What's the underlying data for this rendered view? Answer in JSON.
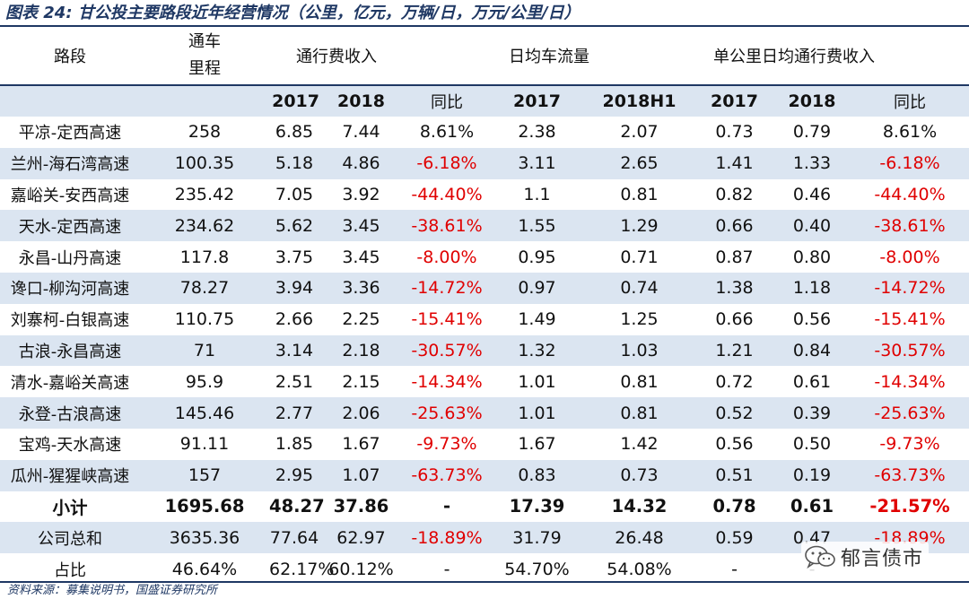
{
  "caption": "图表 24: 甘公投主要路段近年经营情况（公里，亿元，万辆/日，万元/公里/日）",
  "header": {
    "road": "路段",
    "mileage_line1": "通车",
    "mileage_line2": "里程",
    "toll": "通行费收入",
    "traffic": "日均车流量",
    "per_km": "单公里日均通行费收入",
    "y2017": "2017",
    "y2018": "2018",
    "yoy": "同比",
    "y2018h1": "2018H1"
  },
  "rows": [
    {
      "name": "平凉-定西高速",
      "mileage": "258",
      "t2017": "6.85",
      "t2018": "7.44",
      "tyoy": "8.61%",
      "f2017": "2.38",
      "f2018h1": "2.07",
      "k2017": "0.73",
      "k2018": "0.79",
      "kyoy": "8.61%"
    },
    {
      "name": "兰州-海石湾高速",
      "mileage": "100.35",
      "t2017": "5.18",
      "t2018": "4.86",
      "tyoy": "-6.18%",
      "f2017": "3.11",
      "f2018h1": "2.65",
      "k2017": "1.41",
      "k2018": "1.33",
      "kyoy": "-6.18%"
    },
    {
      "name": "嘉峪关-安西高速",
      "mileage": "235.42",
      "t2017": "7.05",
      "t2018": "3.92",
      "tyoy": "-44.40%",
      "f2017": "1.1",
      "f2018h1": "0.81",
      "k2017": "0.82",
      "k2018": "0.46",
      "kyoy": "-44.40%"
    },
    {
      "name": "天水-定西高速",
      "mileage": "234.62",
      "t2017": "5.62",
      "t2018": "3.45",
      "tyoy": "-38.61%",
      "f2017": "1.55",
      "f2018h1": "1.29",
      "k2017": "0.66",
      "k2018": "0.40",
      "kyoy": "-38.61%"
    },
    {
      "name": "永昌-山丹高速",
      "mileage": "117.8",
      "t2017": "3.75",
      "t2018": "3.45",
      "tyoy": "-8.00%",
      "f2017": "0.95",
      "f2018h1": "0.71",
      "k2017": "0.87",
      "k2018": "0.80",
      "kyoy": "-8.00%"
    },
    {
      "name": "谗口-柳沟河高速",
      "mileage": "78.27",
      "t2017": "3.94",
      "t2018": "3.36",
      "tyoy": "-14.72%",
      "f2017": "0.97",
      "f2018h1": "0.74",
      "k2017": "1.38",
      "k2018": "1.18",
      "kyoy": "-14.72%"
    },
    {
      "name": "刘寨柯-白银高速",
      "mileage": "110.75",
      "t2017": "2.66",
      "t2018": "2.25",
      "tyoy": "-15.41%",
      "f2017": "1.49",
      "f2018h1": "1.25",
      "k2017": "0.66",
      "k2018": "0.56",
      "kyoy": "-15.41%"
    },
    {
      "name": "古浪-永昌高速",
      "mileage": "71",
      "t2017": "3.14",
      "t2018": "2.18",
      "tyoy": "-30.57%",
      "f2017": "1.32",
      "f2018h1": "1.03",
      "k2017": "1.21",
      "k2018": "0.84",
      "kyoy": "-30.57%"
    },
    {
      "name": "清水-嘉峪关高速",
      "mileage": "95.9",
      "t2017": "2.51",
      "t2018": "2.15",
      "tyoy": "-14.34%",
      "f2017": "1.01",
      "f2018h1": "0.81",
      "k2017": "0.72",
      "k2018": "0.61",
      "kyoy": "-14.34%"
    },
    {
      "name": "永登-古浪高速",
      "mileage": "145.46",
      "t2017": "2.77",
      "t2018": "2.06",
      "tyoy": "-25.63%",
      "f2017": "1.01",
      "f2018h1": "0.81",
      "k2017": "0.52",
      "k2018": "0.39",
      "kyoy": "-25.63%"
    },
    {
      "name": "宝鸡-天水高速",
      "mileage": "91.11",
      "t2017": "1.85",
      "t2018": "1.67",
      "tyoy": "-9.73%",
      "f2017": "1.67",
      "f2018h1": "1.42",
      "k2017": "0.56",
      "k2018": "0.50",
      "kyoy": "-9.73%"
    },
    {
      "name": "瓜州-猩猩峡高速",
      "mileage": "157",
      "t2017": "2.95",
      "t2018": "1.07",
      "tyoy": "-63.73%",
      "f2017": "0.83",
      "f2018h1": "0.73",
      "k2017": "0.51",
      "k2018": "0.19",
      "kyoy": "-63.73%"
    },
    {
      "name": "小计",
      "mileage": "1695.68",
      "t2017": "48.27",
      "t2018": "37.86",
      "tyoy": "-",
      "f2017": "17.39",
      "f2018h1": "14.32",
      "k2017": "0.78",
      "k2018": "0.61",
      "kyoy": "-21.57%"
    },
    {
      "name": "公司总和",
      "mileage": "3635.36",
      "t2017": "77.64",
      "t2018": "62.97",
      "tyoy": "-18.89%",
      "f2017": "31.79",
      "f2018h1": "26.48",
      "k2017": "0.59",
      "k2018": "0.47",
      "kyoy": "-18.89%"
    },
    {
      "name": "占比",
      "mileage": "46.64%",
      "t2017": "62.17%",
      "t2018": "60.12%",
      "tyoy": "-",
      "f2017": "54.70%",
      "f2018h1": "54.08%",
      "k2017": "-",
      "k2018": "-",
      "kyoy": ""
    }
  ],
  "source": "资料来源：募集说明书，国盛证券研究所",
  "watermark": {
    "text": "郁言债市",
    "icon": "wechat-icon"
  },
  "colors": {
    "header_band": "#dbe5f1",
    "accent": "#1f3864",
    "negative": "#e00000"
  }
}
